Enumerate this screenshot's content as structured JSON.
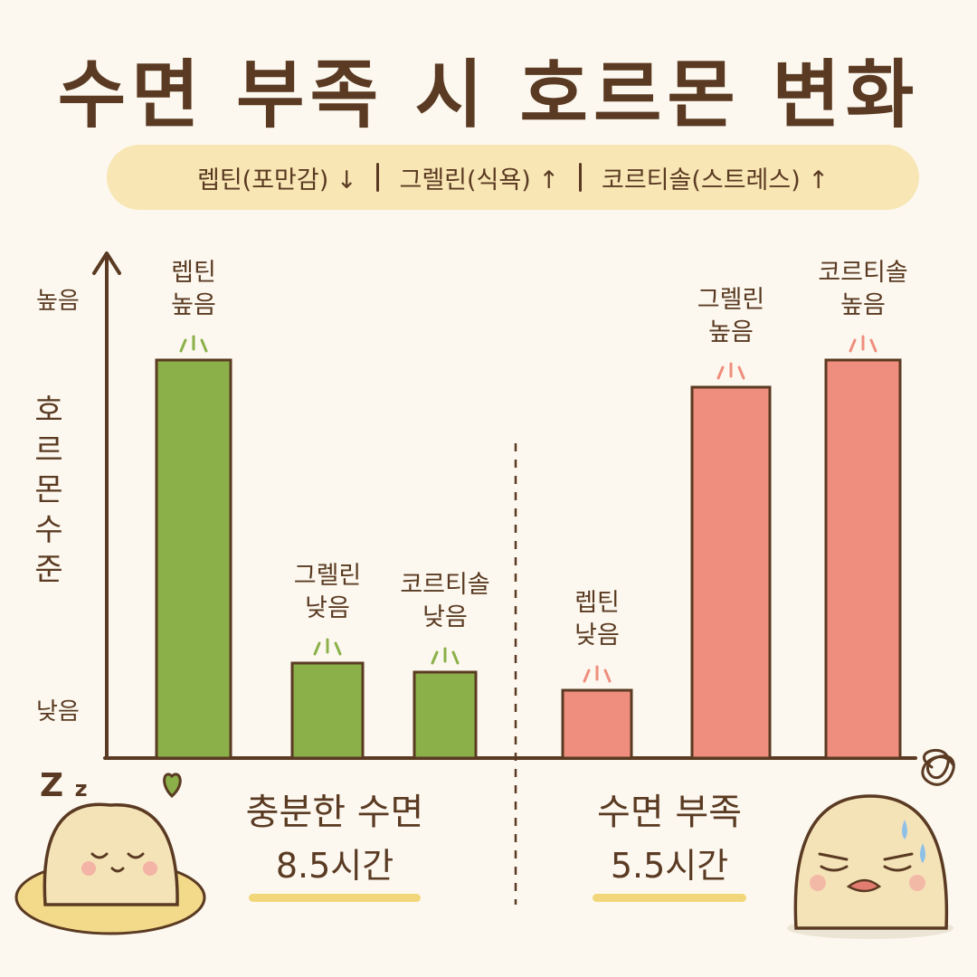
{
  "title": "수면 부족 시 호르몬 변화",
  "banner": {
    "items": [
      {
        "text": "렙틴(포만감)",
        "arrow": "↓"
      },
      {
        "text": "그렐린(식욕)",
        "arrow": "↑"
      },
      {
        "text": "코르티솔(스트레스)",
        "arrow": "↑"
      }
    ]
  },
  "axis": {
    "y_title": [
      "호",
      "르",
      "몬",
      "수",
      "준"
    ],
    "y_high": "높음",
    "y_low": "낮음"
  },
  "groups": [
    {
      "name": "충분한 수면",
      "duration": "8.5시간"
    },
    {
      "name": "수면 부족",
      "duration": "5.5시간"
    }
  ],
  "decor": {
    "sleep_z": "Z",
    "sleep_z_small": "z"
  },
  "colors": {
    "adequate_bar": "#8bb04a",
    "deprived_bar": "#ef8e7e",
    "axis": "#5a3a22",
    "highlight": "#f2d77a",
    "banner_bg": "#f8e6b4"
  },
  "chart_data": {
    "type": "bar",
    "ylabel": "호르몬 수준",
    "ylim": [
      0,
      1
    ],
    "yticks": [
      "낮음",
      "높음"
    ],
    "groups": [
      "충분한 수면 8.5시간",
      "수면 부족 5.5시간"
    ],
    "bars": [
      {
        "group": 0,
        "hormone": "렙틴",
        "level": "높음",
        "value": 0.88
      },
      {
        "group": 0,
        "hormone": "그렐린",
        "level": "낮음",
        "value": 0.21
      },
      {
        "group": 0,
        "hormone": "코르티솔",
        "level": "낮음",
        "value": 0.19
      },
      {
        "group": 1,
        "hormone": "렙틴",
        "level": "낮음",
        "value": 0.15
      },
      {
        "group": 1,
        "hormone": "그렐린",
        "level": "높음",
        "value": 0.82
      },
      {
        "group": 1,
        "hormone": "코르티솔",
        "level": "높음",
        "value": 0.88
      }
    ]
  }
}
